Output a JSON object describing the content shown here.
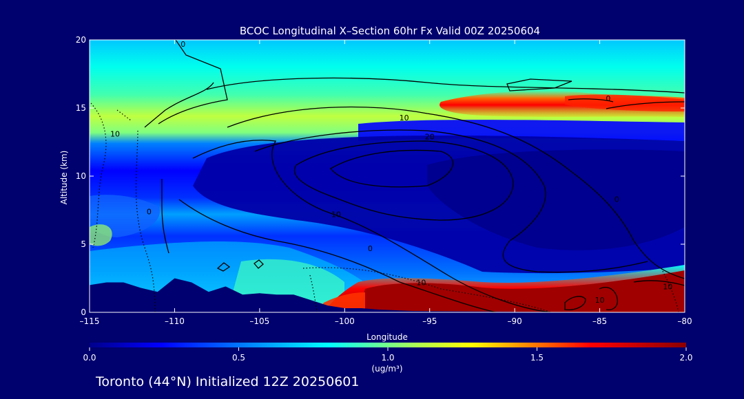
{
  "chart_data": {
    "type": "heatmap",
    "title": "BCOC Longitudinal X–Section 60hr  Fx Valid 00Z 20250604",
    "xlabel": "Longitude",
    "ylabel": "Altitude (km)",
    "xlim": [
      -115,
      -80
    ],
    "ylim": [
      0,
      20
    ],
    "x_ticks": [
      -115,
      -110,
      -105,
      -100,
      -95,
      -90,
      -85,
      -80
    ],
    "x_tick_labels": [
      "–115",
      "–110",
      "–105",
      "–100",
      "–95",
      "–90",
      "–85",
      "–80"
    ],
    "y_ticks": [
      0,
      5,
      10,
      15,
      20
    ],
    "y_tick_labels": [
      "0",
      "5",
      "10",
      "15",
      "20"
    ],
    "colorbar": {
      "min": 0.0,
      "max": 2.0,
      "ticks": [
        0.0,
        0.5,
        1.0,
        1.5,
        2.0
      ],
      "tick_labels": [
        "0.0",
        "0.5",
        "1.0",
        "1.5",
        "2.0"
      ],
      "label": "(ug/m³)",
      "colors": [
        "#00008c",
        "#0000ff",
        "#0090ff",
        "#00ffff",
        "#ffff00",
        "#ff8000",
        "#ff0000",
        "#8b0000"
      ]
    },
    "layers": [
      {
        "name": "upper band",
        "altitude_km": [
          11,
          20
        ],
        "value": 0.85
      },
      {
        "name": "tropopause plume",
        "longitude": [
          -96,
          -80
        ],
        "altitude_km": [
          14,
          16
        ],
        "value": 1.75
      },
      {
        "name": "mid-level low",
        "altitude_km": [
          5,
          13
        ],
        "value": 0.1
      },
      {
        "name": "boundary layer plume",
        "longitude": [
          -99,
          -80
        ],
        "altitude_km": [
          0,
          3
        ],
        "value": 2.0
      }
    ],
    "contour_labels": [
      {
        "text": "0",
        "lon": -109.5,
        "alt": 19.5
      },
      {
        "text": "10",
        "lon": -113.5,
        "alt": 12.9
      },
      {
        "text": "0",
        "lon": -111.5,
        "alt": 7.2
      },
      {
        "text": "10",
        "lon": -96.5,
        "alt": 14.1
      },
      {
        "text": "20",
        "lon": -95.0,
        "alt": 12.7
      },
      {
        "text": "10",
        "lon": -100.5,
        "alt": 7.0
      },
      {
        "text": "0",
        "lon": -98.5,
        "alt": 4.5
      },
      {
        "text": "10",
        "lon": -95.5,
        "alt": 2.0
      },
      {
        "text": "0",
        "lon": -84.5,
        "alt": 15.5
      },
      {
        "text": "0",
        "lon": -84.0,
        "alt": 8.1
      },
      {
        "text": "10",
        "lon": -81.0,
        "alt": 1.7
      },
      {
        "text": "10",
        "lon": -85.0,
        "alt": 0.7
      }
    ],
    "terrain_km": [
      [
        -115,
        2.0
      ],
      [
        -114,
        2.2
      ],
      [
        -113,
        2.2
      ],
      [
        -112,
        1.8
      ],
      [
        -111,
        1.5
      ],
      [
        -110,
        2.5
      ],
      [
        -109,
        2.2
      ],
      [
        -108,
        1.5
      ],
      [
        -107,
        1.9
      ],
      [
        -106,
        1.3
      ],
      [
        -105,
        1.4
      ],
      [
        -104,
        1.3
      ],
      [
        -103,
        1.3
      ],
      [
        -102,
        0.9
      ],
      [
        -101,
        0.5
      ],
      [
        -100,
        0.3
      ],
      [
        -99,
        0.3
      ],
      [
        -98,
        0.2
      ],
      [
        -96,
        0.1
      ],
      [
        -90,
        0.05
      ],
      [
        -80,
        0.0
      ]
    ]
  },
  "footer": {
    "text": "Toronto (44°N) Initialized 12Z 20250601"
  }
}
